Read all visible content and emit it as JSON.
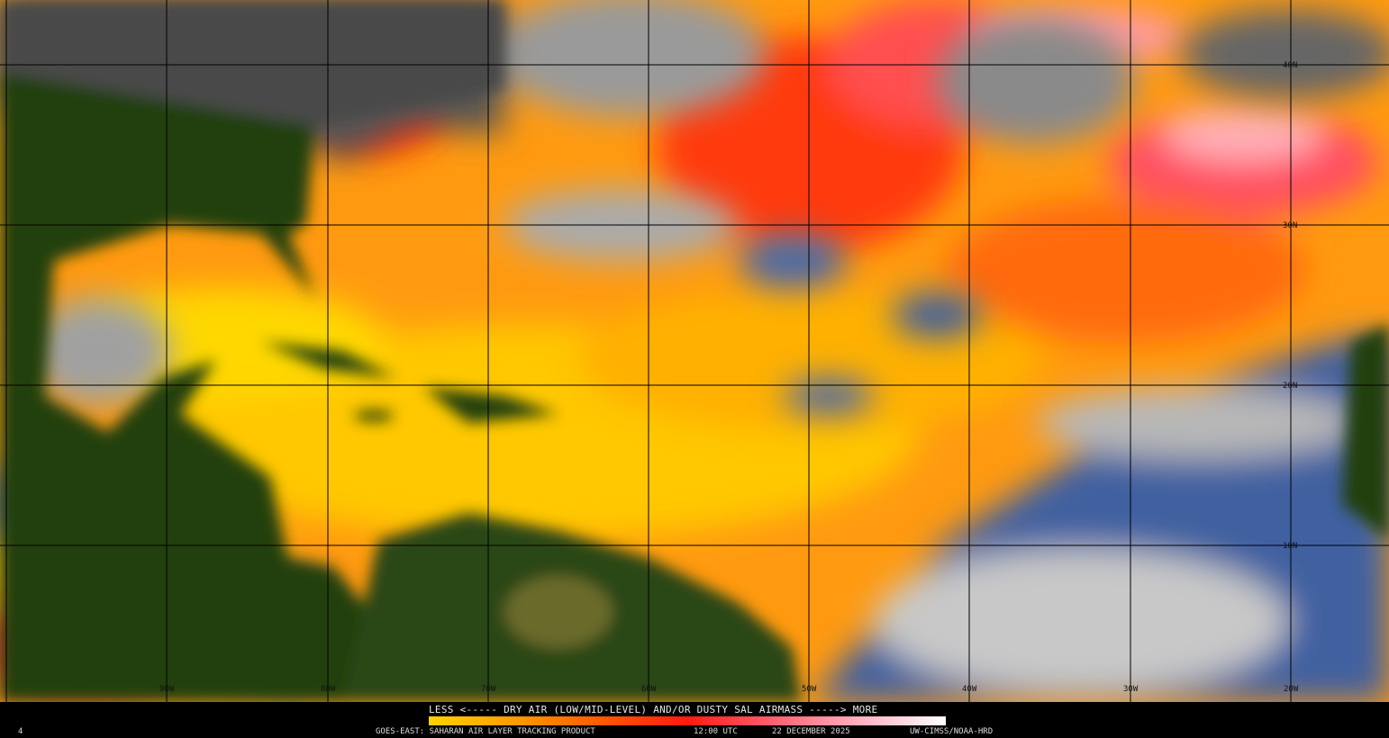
{
  "product": {
    "satellite_label": "GOES-EAST: SAHARAN AIR LAYER TRACKING PRODUCT",
    "time": "12:00 UTC",
    "date": "22 DECEMBER 2025",
    "credit": "UW-CIMSS/NOAA-HRD",
    "corner_mark": "4"
  },
  "legend": {
    "title": "LESS <----- DRY AIR (LOW/MID-LEVEL) AND/OR DUSTY SAL AIRMASS -----> MORE",
    "colors": [
      "#ffd400",
      "#ff9a00",
      "#ff5a00",
      "#ff1a10",
      "#ff6070",
      "#ffb0c0",
      "#ffffff"
    ]
  },
  "grid": {
    "latitude_labels": [
      "40N",
      "30N",
      "20N",
      "10N"
    ],
    "longitude_labels": [
      "90W",
      "80W",
      "70W",
      "60W",
      "50W",
      "40W",
      "30W",
      "20W"
    ]
  },
  "palette": {
    "land": "#1f3a0e",
    "clouds": "#8a8a8a",
    "moist": "#3d5fa0",
    "dry_low": "#ffd000",
    "dry_mid": "#ff8a00",
    "dry_high": "#ff2a10",
    "dry_max": "#ff9aa8"
  }
}
